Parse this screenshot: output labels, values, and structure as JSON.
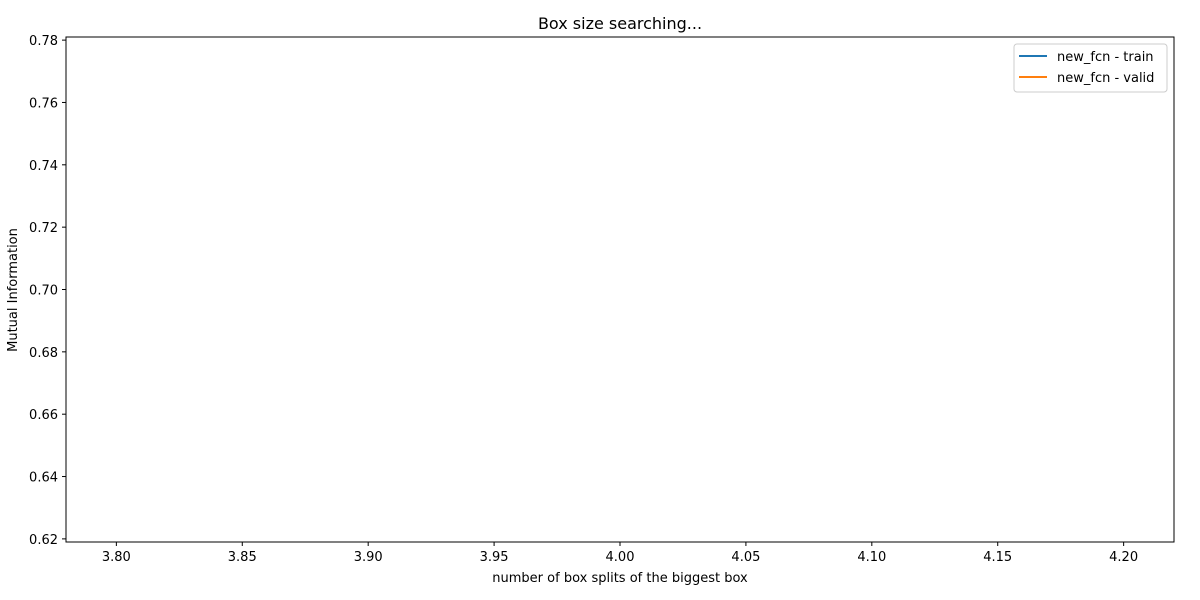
{
  "chart_data": {
    "type": "line",
    "title": "Box size searching...",
    "xlabel": "number of box splits of the biggest box",
    "ylabel": "Mutual Information",
    "xlim": [
      3.78,
      4.22
    ],
    "ylim": [
      0.619,
      0.781
    ],
    "x_ticks": [
      "3.80",
      "3.85",
      "3.90",
      "3.95",
      "4.00",
      "4.05",
      "4.10",
      "4.15",
      "4.20"
    ],
    "y_ticks": [
      "0.62",
      "0.64",
      "0.66",
      "0.68",
      "0.70",
      "0.72",
      "0.74",
      "0.76",
      "0.78"
    ],
    "grid": false,
    "legend_position": "top-right",
    "series": [
      {
        "name": "new_fcn - train",
        "color": "#1f77b4",
        "x": [],
        "y": []
      },
      {
        "name": "new_fcn - valid",
        "color": "#ff7f0e",
        "x": [],
        "y": []
      }
    ]
  }
}
